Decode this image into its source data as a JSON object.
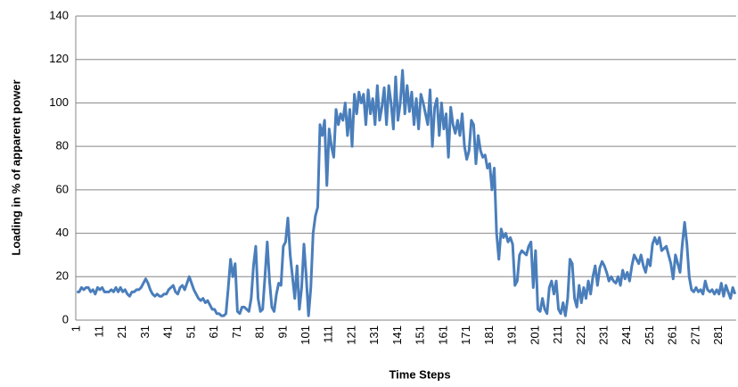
{
  "chart_data": {
    "type": "line",
    "xlabel": "Time Steps",
    "ylabel": "Loading in % of apparent power",
    "color": "#4a7ebb",
    "grid": true,
    "ylim": [
      0,
      140
    ],
    "yticks": [
      0,
      20,
      40,
      60,
      80,
      100,
      120,
      140
    ],
    "categories": [
      "1",
      null,
      null,
      null,
      null,
      null,
      null,
      null,
      null,
      null,
      "11",
      null,
      null,
      null,
      null,
      null,
      null,
      null,
      null,
      null,
      "21",
      null,
      null,
      null,
      null,
      null,
      null,
      null,
      null,
      null,
      "31",
      null,
      null,
      null,
      null,
      null,
      null,
      null,
      null,
      null,
      "41",
      null,
      null,
      null,
      null,
      null,
      null,
      null,
      null,
      null,
      "51",
      null,
      null,
      null,
      null,
      null,
      null,
      null,
      null,
      null,
      "61",
      null,
      null,
      null,
      null,
      null,
      null,
      null,
      null,
      null,
      "71",
      null,
      null,
      null,
      null,
      null,
      null,
      null,
      null,
      null,
      "81",
      null,
      null,
      null,
      null,
      null,
      null,
      null,
      null,
      null,
      "91",
      null,
      null,
      null,
      null,
      null,
      null,
      null,
      null,
      null,
      "101",
      null,
      null,
      null,
      null,
      null,
      null,
      null,
      null,
      null,
      "111",
      null,
      null,
      null,
      null,
      null,
      null,
      null,
      null,
      null,
      "121",
      null,
      null,
      null,
      null,
      null,
      null,
      null,
      null,
      null,
      "131",
      null,
      null,
      null,
      null,
      null,
      null,
      null,
      null,
      null,
      "141",
      null,
      null,
      null,
      null,
      null,
      null,
      null,
      null,
      null,
      "151",
      null,
      null,
      null,
      null,
      null,
      null,
      null,
      null,
      null,
      "161",
      null,
      null,
      null,
      null,
      null,
      null,
      null,
      null,
      null,
      "171",
      null,
      null,
      null,
      null,
      null,
      null,
      null,
      null,
      null,
      "181",
      null,
      null,
      null,
      null,
      null,
      null,
      null,
      null,
      null,
      "191",
      null,
      null,
      null,
      null,
      null,
      null,
      null,
      null,
      null,
      "201",
      null,
      null,
      null,
      null,
      null,
      null,
      null,
      null,
      null,
      "211",
      null,
      null,
      null,
      null,
      null,
      null,
      null,
      null,
      null,
      "221",
      null,
      null,
      null,
      null,
      null,
      null,
      null,
      null,
      null,
      "231",
      null,
      null,
      null,
      null,
      null,
      null,
      null,
      null,
      null,
      "241",
      null,
      null,
      null,
      null,
      null,
      null,
      null,
      null,
      null,
      "251",
      null,
      null,
      null,
      null,
      null,
      null,
      null,
      null,
      null,
      "261",
      null,
      null,
      null,
      null,
      null,
      null,
      null,
      null,
      null,
      "271",
      null,
      null,
      null,
      null,
      null,
      null,
      null,
      null,
      null,
      "281",
      null,
      null,
      null,
      null,
      null,
      null,
      null
    ],
    "values": [
      13,
      13,
      15,
      14,
      15,
      15,
      13,
      14,
      12,
      15,
      14,
      15,
      13,
      13,
      13,
      14,
      13,
      15,
      13,
      15,
      13,
      14,
      12,
      11,
      13,
      13,
      14,
      14,
      15,
      17,
      19,
      17,
      14,
      12,
      11,
      12,
      11,
      11,
      12,
      12,
      14,
      15,
      16,
      13,
      12,
      15,
      16,
      14,
      17,
      20,
      17,
      14,
      12,
      10,
      9,
      10,
      8,
      9,
      7,
      5,
      5,
      3,
      3,
      2,
      2,
      3,
      15,
      28,
      20,
      26,
      4,
      3,
      6,
      6,
      5,
      4,
      10,
      25,
      34,
      10,
      4,
      5,
      20,
      36,
      18,
      6,
      4,
      12,
      17,
      16,
      34,
      36,
      47,
      30,
      20,
      10,
      25,
      5,
      15,
      35,
      20,
      2,
      15,
      40,
      48,
      52,
      90,
      85,
      92,
      62,
      88,
      80,
      75,
      97,
      90,
      95,
      92,
      100,
      85,
      97,
      80,
      104,
      95,
      105,
      100,
      104,
      90,
      106,
      95,
      102,
      90,
      108,
      92,
      98,
      107,
      90,
      108,
      100,
      88,
      112,
      92,
      100,
      115,
      95,
      108,
      96,
      105,
      90,
      102,
      88,
      104,
      100,
      95,
      90,
      106,
      80,
      98,
      102,
      85,
      100,
      88,
      95,
      75,
      98,
      90,
      86,
      92,
      85,
      95,
      80,
      74,
      78,
      92,
      90,
      72,
      85,
      78,
      75,
      76,
      70,
      72,
      60,
      70,
      40,
      28,
      42,
      38,
      40,
      36,
      38,
      35,
      16,
      18,
      30,
      32,
      31,
      30,
      34,
      36,
      15,
      32,
      5,
      4,
      10,
      5,
      3,
      15,
      18,
      12,
      18,
      5,
      3,
      8,
      2,
      10,
      28,
      26,
      10,
      6,
      16,
      8,
      15,
      10,
      18,
      12,
      20,
      25,
      16,
      24,
      27,
      25,
      22,
      18,
      20,
      18,
      17,
      20,
      16,
      23,
      19,
      22,
      18,
      25,
      30,
      28,
      26,
      30,
      25,
      22,
      28,
      25,
      35,
      38,
      35,
      38,
      32,
      33,
      34,
      30,
      26,
      19,
      30,
      26,
      22,
      35,
      45,
      35,
      20,
      14,
      13,
      15,
      13,
      14,
      12,
      18,
      14,
      13,
      14,
      12,
      14,
      12,
      17,
      11,
      16,
      13,
      10,
      15,
      12
    ]
  }
}
